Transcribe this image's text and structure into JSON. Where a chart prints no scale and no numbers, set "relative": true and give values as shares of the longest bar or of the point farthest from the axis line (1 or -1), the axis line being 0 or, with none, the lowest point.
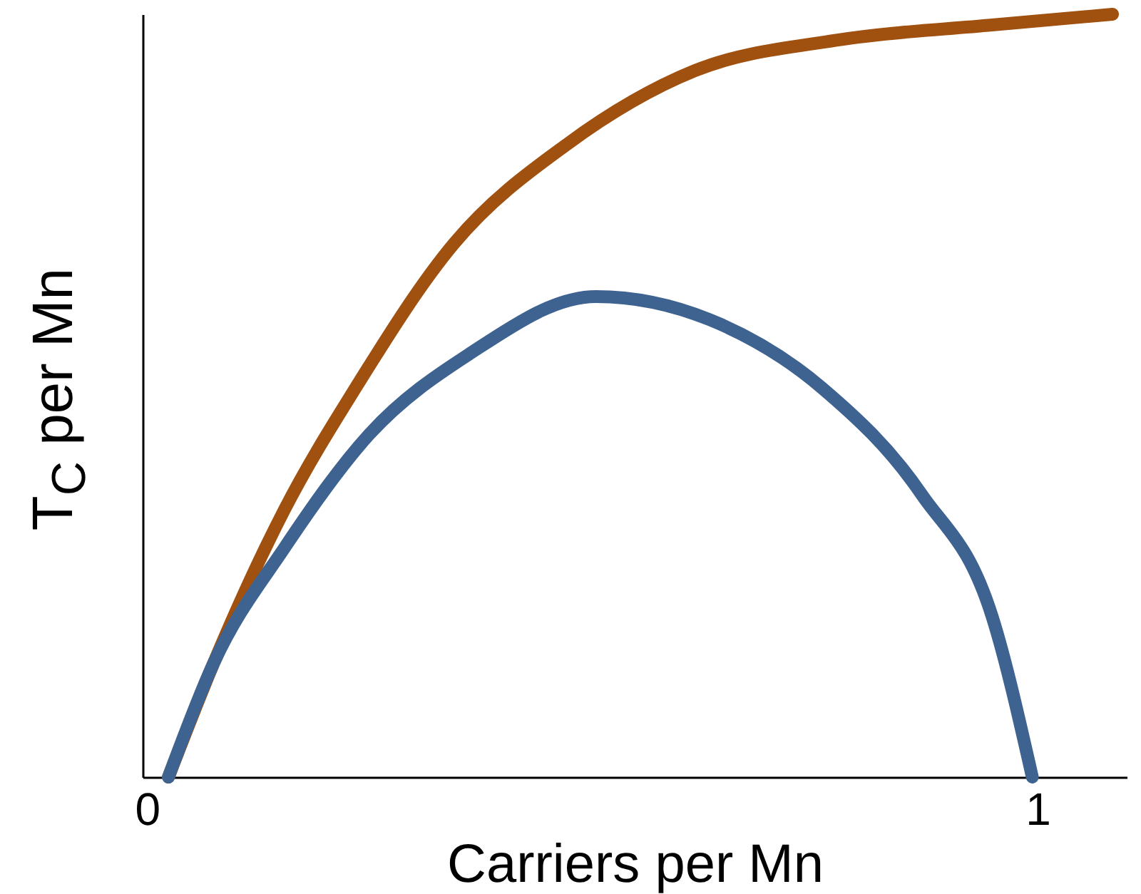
{
  "chart_data": {
    "type": "line",
    "xlabel": "Carriers per Mn",
    "ylabel": "T$_{C}$ per Mn",
    "relative": true,
    "xlim": [
      -0.005,
      1.1
    ],
    "xticks": [
      0,
      1
    ],
    "series": [
      {
        "color": "#a0500f",
        "x": [
          0.024,
          0.075,
          0.154,
          0.234,
          0.345,
          0.472,
          0.615,
          0.774,
          0.949,
          1.084
        ],
        "values": [
          0,
          0.15,
          0.35,
          0.51,
          0.7,
          0.83,
          0.926,
          0.966,
          0.986,
          1.0
        ]
      },
      {
        "color": "#3e6391",
        "x": [
          0.024,
          0.075,
          0.154,
          0.25,
          0.361,
          0.504,
          0.631,
          0.758,
          0.87,
          0.949,
          0.994
        ],
        "values": [
          0,
          0.15,
          0.3,
          0.45,
          0.554,
          0.63,
          0.6,
          0.51,
          0.37,
          0.21,
          0
        ]
      }
    ]
  }
}
